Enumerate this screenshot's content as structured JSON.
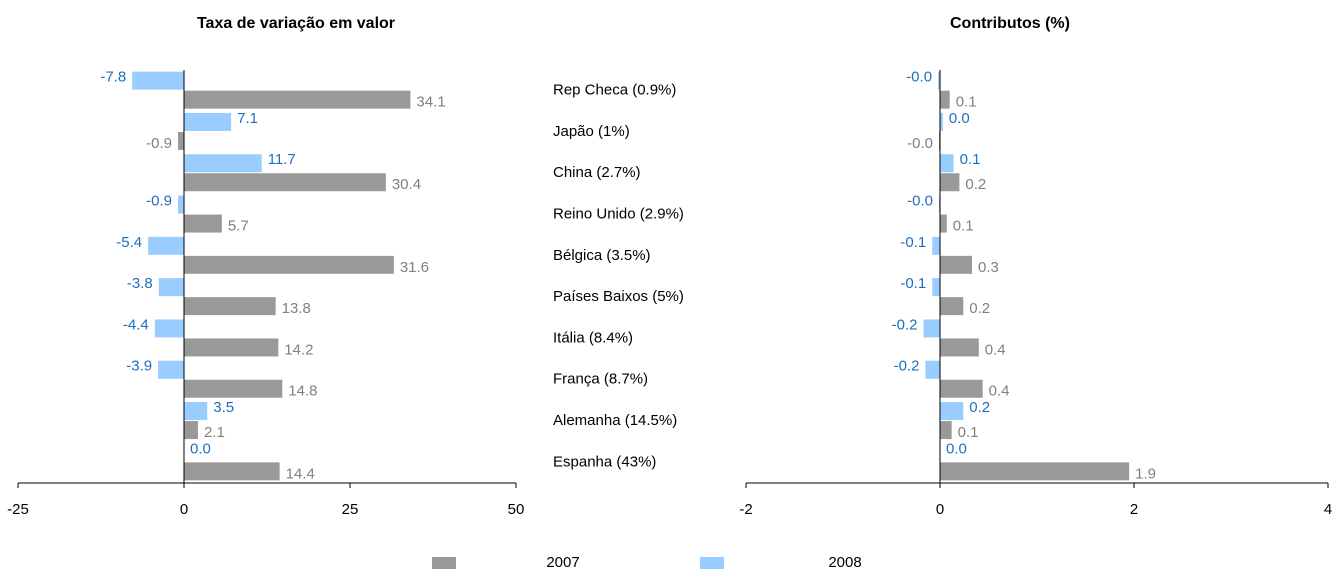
{
  "chart_data": [
    {
      "type": "bar",
      "orientation": "horizontal",
      "title": "Taxa de variação em valor",
      "categories": [
        "Rep Checa (0.9%)",
        "Japão (1%)",
        "China (2.7%)",
        "Reino Unido (2.9%)",
        "Bélgica (3.5%)",
        "Países Baixos  (5%)",
        "Itália (8.4%)",
        "França (8.7%)",
        "Alemanha (14.5%)",
        "Espanha (43%)"
      ],
      "series": [
        {
          "name": "2007",
          "color": "#999999",
          "label_color": "#808080",
          "values": [
            34.1,
            -0.9,
            30.4,
            5.7,
            31.6,
            13.8,
            14.2,
            14.8,
            2.1,
            14.4
          ],
          "value_labels": [
            "34.1",
            "-0.9",
            "30.4",
            "5.7",
            "31.6",
            "13.8",
            "14.2",
            "14.8",
            "2.1",
            "14.4"
          ]
        },
        {
          "name": "2008",
          "color": "#99ccff",
          "label_color": "#1f6fbf",
          "values": [
            -7.8,
            7.1,
            11.7,
            -0.9,
            -5.4,
            -3.8,
            -4.4,
            -3.9,
            3.5,
            0.0
          ],
          "value_labels": [
            "-7.8",
            "7.1",
            "11.7",
            "-0.9",
            "-5.4",
            "-3.8",
            "-4.4",
            "-3.9",
            "3.5",
            "0.0"
          ]
        }
      ],
      "xlim": [
        -25,
        50
      ],
      "xticks": [
        -25,
        0,
        25,
        50
      ]
    },
    {
      "type": "bar",
      "orientation": "horizontal",
      "title": "Contributos (%)",
      "series": [
        {
          "color": "#999999",
          "label_color": "#808080",
          "values": [
            0.1,
            -0.01,
            0.2,
            0.07,
            0.33,
            0.24,
            0.4,
            0.44,
            0.12,
            1.95
          ],
          "value_labels": [
            "0.1",
            "-0.0",
            "0.2",
            "0.1",
            "0.3",
            "0.2",
            "0.4",
            "0.4",
            "0.1",
            "1.9"
          ]
        },
        {
          "color": "#99ccff",
          "label_color": "#1f6fbf",
          "values": [
            -0.02,
            0.03,
            0.14,
            -0.01,
            -0.08,
            -0.08,
            -0.17,
            -0.15,
            0.24,
            0.0
          ],
          "value_labels": [
            "-0.0",
            "0.0",
            "0.1",
            "-0.0",
            "-0.1",
            "-0.1",
            "-0.2",
            "-0.2",
            "0.2",
            "0.0"
          ]
        }
      ],
      "xlim": [
        -2,
        4
      ],
      "xticks": [
        -2,
        0,
        2,
        4
      ]
    }
  ]
}
